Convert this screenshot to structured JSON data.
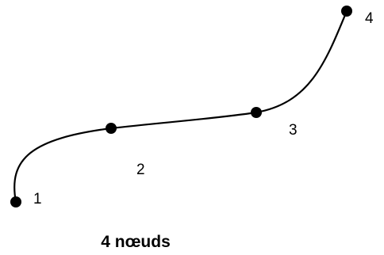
{
  "diagram": {
    "caption": "4 nœuds",
    "nodes": [
      {
        "label": "1"
      },
      {
        "label": "2"
      },
      {
        "label": "3"
      },
      {
        "label": "4"
      }
    ],
    "colors": {
      "stroke": "#000000",
      "background": "#ffffff"
    }
  }
}
